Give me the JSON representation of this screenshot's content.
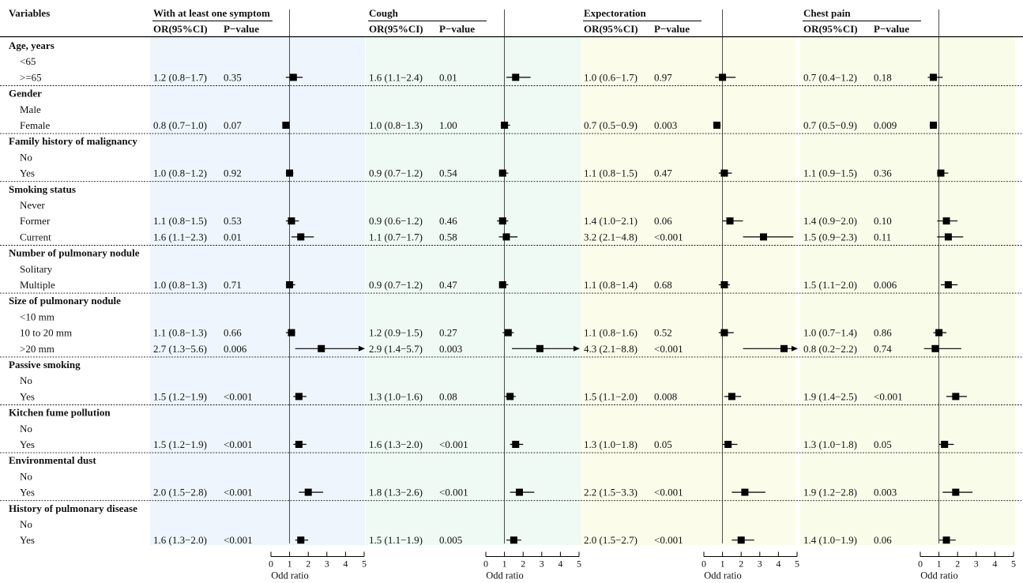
{
  "chart_data": {
    "type": "forest",
    "header": {
      "variables": "Variables",
      "or_label": "OR(95%CI)",
      "p_label": "P−value"
    },
    "panels": [
      {
        "title": "With at least one symptom",
        "rows": [
          {
            "or": "1.2 (0.8−1.7)",
            "p": "0.35",
            "est": 1.2,
            "lo": 0.8,
            "hi": 1.7
          },
          {
            "or": "0.8 (0.7−1.0)",
            "p": "0.07",
            "est": 0.8,
            "lo": 0.7,
            "hi": 1.0
          },
          {
            "or": "1.0 (0.8−1.2)",
            "p": "0.92",
            "est": 1.0,
            "lo": 0.8,
            "hi": 1.2
          },
          {
            "or": "1.1 (0.8−1.5)",
            "p": "0.53",
            "est": 1.1,
            "lo": 0.8,
            "hi": 1.5
          },
          {
            "or": "1.6 (1.1−2.3)",
            "p": "0.01",
            "est": 1.6,
            "lo": 1.1,
            "hi": 2.3
          },
          {
            "or": "1.0 (0.8−1.3)",
            "p": "0.71",
            "est": 1.0,
            "lo": 0.8,
            "hi": 1.3
          },
          {
            "or": "1.1 (0.8−1.3)",
            "p": "0.66",
            "est": 1.1,
            "lo": 0.8,
            "hi": 1.3
          },
          {
            "or": "2.7 (1.3−5.6)",
            "p": "0.006",
            "est": 2.7,
            "lo": 1.3,
            "hi": 5.6
          },
          {
            "or": "1.5 (1.2−1.9)",
            "p": "<0.001",
            "est": 1.5,
            "lo": 1.2,
            "hi": 1.9
          },
          {
            "or": "1.5 (1.2−1.9)",
            "p": "<0.001",
            "est": 1.5,
            "lo": 1.2,
            "hi": 1.9
          },
          {
            "or": "2.0 (1.5−2.8)",
            "p": "<0.001",
            "est": 2.0,
            "lo": 1.5,
            "hi": 2.8
          },
          {
            "or": "1.6 (1.3−2.0)",
            "p": "<0.001",
            "est": 1.6,
            "lo": 1.3,
            "hi": 2.0
          }
        ]
      },
      {
        "title": "Cough",
        "rows": [
          {
            "or": "1.6 (1.1−2.4)",
            "p": "0.01",
            "est": 1.6,
            "lo": 1.1,
            "hi": 2.4
          },
          {
            "or": "1.0 (0.8−1.3)",
            "p": "1.00",
            "est": 1.0,
            "lo": 0.8,
            "hi": 1.3
          },
          {
            "or": "0.9 (0.7−1.2)",
            "p": "0.54",
            "est": 0.9,
            "lo": 0.7,
            "hi": 1.2
          },
          {
            "or": "0.9 (0.6−1.2)",
            "p": "0.46",
            "est": 0.9,
            "lo": 0.6,
            "hi": 1.2
          },
          {
            "or": "1.1 (0.7−1.7)",
            "p": "0.58",
            "est": 1.1,
            "lo": 0.7,
            "hi": 1.7
          },
          {
            "or": "0.9 (0.7−1.2)",
            "p": "0.47",
            "est": 0.9,
            "lo": 0.7,
            "hi": 1.2
          },
          {
            "or": "1.2 (0.9−1.5)",
            "p": "0.27",
            "est": 1.2,
            "lo": 0.9,
            "hi": 1.5
          },
          {
            "or": "2.9 (1.4−5.7)",
            "p": "0.003",
            "est": 2.9,
            "lo": 1.4,
            "hi": 5.7
          },
          {
            "or": "1.3 (1.0−1.6)",
            "p": "0.08",
            "est": 1.3,
            "lo": 1.0,
            "hi": 1.6
          },
          {
            "or": "1.6 (1.3−2.0)",
            "p": "<0.001",
            "est": 1.6,
            "lo": 1.3,
            "hi": 2.0
          },
          {
            "or": "1.8 (1.3−2.6)",
            "p": "<0.001",
            "est": 1.8,
            "lo": 1.3,
            "hi": 2.6
          },
          {
            "or": "1.5 (1.1−1.9)",
            "p": "0.005",
            "est": 1.5,
            "lo": 1.1,
            "hi": 1.9
          }
        ]
      },
      {
        "title": "Expectoration",
        "rows": [
          {
            "or": "1.0 (0.6−1.7)",
            "p": "0.97",
            "est": 1.0,
            "lo": 0.6,
            "hi": 1.7
          },
          {
            "or": "0.7 (0.5−0.9)",
            "p": "0.003",
            "est": 0.7,
            "lo": 0.5,
            "hi": 0.9
          },
          {
            "or": "1.1 (0.8−1.5)",
            "p": "0.47",
            "est": 1.1,
            "lo": 0.8,
            "hi": 1.5
          },
          {
            "or": "1.4 (1.0−2.1)",
            "p": "0.06",
            "est": 1.4,
            "lo": 1.0,
            "hi": 2.1
          },
          {
            "or": "3.2 (2.1−4.8)",
            "p": "<0.001",
            "est": 3.2,
            "lo": 2.1,
            "hi": 4.8
          },
          {
            "or": "1.1 (0.8−1.4)",
            "p": "0.68",
            "est": 1.1,
            "lo": 0.8,
            "hi": 1.4
          },
          {
            "or": "1.1 (0.8−1.6)",
            "p": "0.52",
            "est": 1.1,
            "lo": 0.8,
            "hi": 1.6
          },
          {
            "or": "4.3 (2.1−8.8)",
            "p": "<0.001",
            "est": 4.3,
            "lo": 2.1,
            "hi": 8.8
          },
          {
            "or": "1.5 (1.1−2.0)",
            "p": "0.008",
            "est": 1.5,
            "lo": 1.1,
            "hi": 2.0
          },
          {
            "or": "1.3 (1.0−1.8)",
            "p": "0.05",
            "est": 1.3,
            "lo": 1.0,
            "hi": 1.8
          },
          {
            "or": "2.2 (1.5−3.3)",
            "p": "<0.001",
            "est": 2.2,
            "lo": 1.5,
            "hi": 3.3
          },
          {
            "or": "2.0 (1.5−2.7)",
            "p": "<0.001",
            "est": 2.0,
            "lo": 1.5,
            "hi": 2.7
          }
        ]
      },
      {
        "title": "Chest pain",
        "rows": [
          {
            "or": "0.7 (0.4−1.2)",
            "p": "0.18",
            "est": 0.7,
            "lo": 0.4,
            "hi": 1.2
          },
          {
            "or": "0.7 (0.5−0.9)",
            "p": "0.009",
            "est": 0.7,
            "lo": 0.5,
            "hi": 0.9
          },
          {
            "or": "1.1 (0.9−1.5)",
            "p": "0.36",
            "est": 1.1,
            "lo": 0.9,
            "hi": 1.5
          },
          {
            "or": "1.4 (0.9−2.0)",
            "p": "0.10",
            "est": 1.4,
            "lo": 0.9,
            "hi": 2.0
          },
          {
            "or": "1.5 (0.9−2.3)",
            "p": "0.11",
            "est": 1.5,
            "lo": 0.9,
            "hi": 2.3
          },
          {
            "or": "1.5 (1.1−2.0)",
            "p": "0.006",
            "est": 1.5,
            "lo": 1.1,
            "hi": 2.0
          },
          {
            "or": "1.0 (0.7−1.4)",
            "p": "0.86",
            "est": 1.0,
            "lo": 0.7,
            "hi": 1.4
          },
          {
            "or": "0.8 (0.2−2.2)",
            "p": "0.74",
            "est": 0.8,
            "lo": 0.2,
            "hi": 2.2
          },
          {
            "or": "1.9 (1.4−2.5)",
            "p": "<0.001",
            "est": 1.9,
            "lo": 1.4,
            "hi": 2.5
          },
          {
            "or": "1.3 (1.0−1.8)",
            "p": "0.05",
            "est": 1.3,
            "lo": 1.0,
            "hi": 1.8
          },
          {
            "or": "1.9 (1.2−2.8)",
            "p": "0.003",
            "est": 1.9,
            "lo": 1.2,
            "hi": 2.8
          },
          {
            "or": "1.4 (1.0−1.9)",
            "p": "0.06",
            "est": 1.4,
            "lo": 1.0,
            "hi": 1.9
          }
        ]
      }
    ],
    "groups": [
      {
        "name": "Age, years",
        "levels": [
          "<65",
          ">=65"
        ]
      },
      {
        "name": "Gender",
        "levels": [
          "Male",
          "Female"
        ]
      },
      {
        "name": "Family history of malignancy",
        "levels": [
          "No",
          "Yes"
        ]
      },
      {
        "name": "Smoking status",
        "levels": [
          "Never",
          "Former",
          "Current"
        ]
      },
      {
        "name": "Number of pulmonary nodule",
        "levels": [
          "Solitary",
          "Multiple"
        ]
      },
      {
        "name": "Size of pulmonary nodule",
        "levels": [
          "<10 mm",
          "10 to 20 mm",
          ">20 mm"
        ]
      },
      {
        "name": "Passive smoking",
        "levels": [
          "No",
          "Yes"
        ]
      },
      {
        "name": "Kitchen fume pollution",
        "levels": [
          "No",
          "Yes"
        ]
      },
      {
        "name": "Environmental dust",
        "levels": [
          "No",
          "Yes"
        ]
      },
      {
        "name": "History of pulmonary disease",
        "levels": [
          "No",
          "Yes"
        ]
      }
    ],
    "x_axis": {
      "label": "Odd ratio",
      "range": [
        0,
        5
      ],
      "ticks": [
        0,
        1,
        2,
        3,
        4,
        5
      ],
      "ref_line": 1
    },
    "panel_colors": [
      "#eef5fc",
      "#eefaf3",
      "#fcfcea",
      "#fafcea"
    ]
  }
}
